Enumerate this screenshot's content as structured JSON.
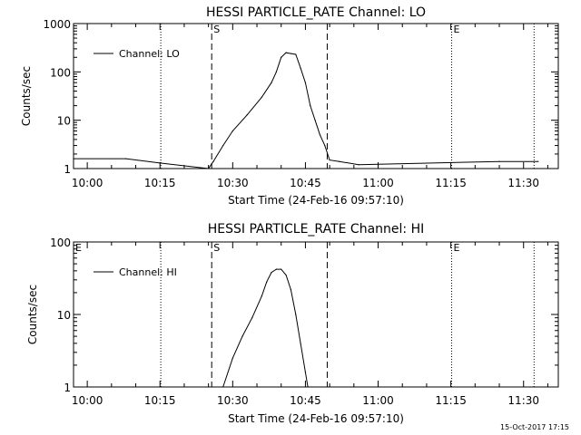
{
  "chart_data": [
    {
      "type": "line",
      "title": "HESSI PARTICLE_RATE Channel: LO",
      "xlabel": "Start Time (24-Feb-16 09:57:10)",
      "ylabel": "Counts/sec",
      "yscale": "log",
      "ylim": [
        1,
        1000
      ],
      "xlim_minutes_from_start": [
        0,
        100
      ],
      "x_ticks": [
        "10:00",
        "10:15",
        "10:30",
        "10:45",
        "11:00",
        "11:15",
        "11:30"
      ],
      "y_ticks": [
        "1",
        "10",
        "100",
        "1000"
      ],
      "legend": {
        "entries": [
          "Channel: LO"
        ],
        "placement": "top-left"
      },
      "markers": [
        {
          "label": "S",
          "style": "dashed",
          "time": "10:25:40"
        },
        {
          "label": "",
          "style": "dashed",
          "time": "10:49:30"
        },
        {
          "label": "E",
          "style": "dotted",
          "time": "11:15:10"
        }
      ],
      "other_dotted_lines": [
        "10:15:10",
        "11:32:10"
      ],
      "series": [
        {
          "name": "Channel: LO",
          "x": [
            "09:57:10",
            "10:08:00",
            "10:15:00",
            "10:25:00",
            "10:26:00",
            "10:28:00",
            "10:30:00",
            "10:33:00",
            "10:36:00",
            "10:38:00",
            "10:39:00",
            "10:40:00",
            "10:41:00",
            "10:42:00",
            "10:43:00",
            "10:44:00",
            "10:45:00",
            "10:46:00",
            "10:47:00",
            "10:48:00",
            "10:49:00",
            "10:50:00",
            "10:52:00",
            "10:56:00",
            "11:25:00",
            "11:33:00"
          ],
          "y": [
            1.6,
            1.6,
            1.3,
            1.0,
            1.4,
            3,
            6,
            13,
            30,
            60,
            100,
            200,
            250,
            240,
            230,
            120,
            60,
            20,
            10,
            5,
            3,
            1.5,
            1.4,
            1.2,
            1.4,
            1.4
          ]
        }
      ]
    },
    {
      "type": "line",
      "title": "HESSI PARTICLE_RATE Channel: HI",
      "xlabel": "Start Time (24-Feb-16 09:57:10)",
      "ylabel": "Counts/sec",
      "yscale": "log",
      "ylim": [
        1,
        100
      ],
      "xlim_minutes_from_start": [
        0,
        100
      ],
      "x_ticks": [
        "10:00",
        "10:15",
        "10:30",
        "10:45",
        "11:00",
        "11:15",
        "11:30"
      ],
      "y_ticks": [
        "1",
        "10",
        "100"
      ],
      "legend": {
        "entries": [
          "Channel: HI"
        ],
        "placement": "top-left"
      },
      "markers": [
        {
          "label": "S",
          "style": "dashed",
          "time": "10:25:40"
        },
        {
          "label": "",
          "style": "dashed",
          "time": "10:49:30"
        },
        {
          "label": "E",
          "style": "dotted",
          "time": "11:15:10"
        }
      ],
      "extra_labels": [
        "E"
      ],
      "other_dotted_lines": [
        "10:15:10",
        "11:32:10"
      ],
      "series": [
        {
          "name": "Channel: HI",
          "x": [
            "10:28:00",
            "10:30:00",
            "10:32:00",
            "10:34:00",
            "10:36:00",
            "10:37:00",
            "10:38:00",
            "10:39:00",
            "10:40:00",
            "10:41:00",
            "10:42:00",
            "10:43:00",
            "10:44:00",
            "10:45:00",
            "10:45:30"
          ],
          "y": [
            1.0,
            2.5,
            5,
            9,
            18,
            28,
            38,
            42,
            42,
            35,
            22,
            10,
            4,
            1.6,
            1.0
          ]
        }
      ]
    }
  ],
  "footer": {
    "timestamp": "15-Oct-2017 17:15"
  }
}
